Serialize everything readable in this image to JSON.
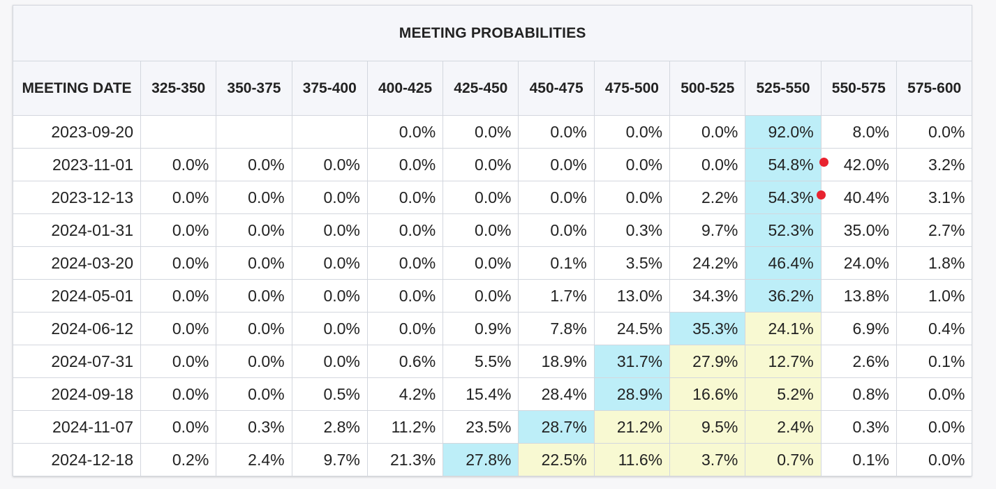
{
  "colors": {
    "current_target": "#bdeef8",
    "alternative": "#f8f9d2",
    "marker": "#e8232f"
  },
  "chart_data": {
    "type": "table",
    "title": "MEETING PROBABILITIES",
    "columns": [
      "MEETING DATE",
      "325-350",
      "350-375",
      "375-400",
      "400-425",
      "425-450",
      "450-475",
      "475-500",
      "500-525",
      "525-550",
      "550-575",
      "575-600"
    ],
    "rows": [
      {
        "date": "2023-09-20",
        "values": [
          "",
          "",
          "",
          "0.0%",
          "0.0%",
          "0.0%",
          "0.0%",
          "0.0%",
          "92.0%",
          "8.0%",
          "0.0%"
        ],
        "hi": 8,
        "alt": [],
        "dot": null
      },
      {
        "date": "2023-11-01",
        "values": [
          "0.0%",
          "0.0%",
          "0.0%",
          "0.0%",
          "0.0%",
          "0.0%",
          "0.0%",
          "0.0%",
          "54.8%",
          "42.0%",
          "3.2%"
        ],
        "hi": 8,
        "alt": [],
        "dot": 9
      },
      {
        "date": "2023-12-13",
        "values": [
          "0.0%",
          "0.0%",
          "0.0%",
          "0.0%",
          "0.0%",
          "0.0%",
          "0.0%",
          "2.2%",
          "54.3%",
          "40.4%",
          "3.1%"
        ],
        "hi": 8,
        "alt": [],
        "dot": 9
      },
      {
        "date": "2024-01-31",
        "values": [
          "0.0%",
          "0.0%",
          "0.0%",
          "0.0%",
          "0.0%",
          "0.0%",
          "0.3%",
          "9.7%",
          "52.3%",
          "35.0%",
          "2.7%"
        ],
        "hi": 8,
        "alt": [],
        "dot": null
      },
      {
        "date": "2024-03-20",
        "values": [
          "0.0%",
          "0.0%",
          "0.0%",
          "0.0%",
          "0.0%",
          "0.1%",
          "3.5%",
          "24.2%",
          "46.4%",
          "24.0%",
          "1.8%"
        ],
        "hi": 8,
        "alt": [],
        "dot": null
      },
      {
        "date": "2024-05-01",
        "values": [
          "0.0%",
          "0.0%",
          "0.0%",
          "0.0%",
          "0.0%",
          "1.7%",
          "13.0%",
          "34.3%",
          "36.2%",
          "13.8%",
          "1.0%"
        ],
        "hi": 8,
        "alt": [],
        "dot": null
      },
      {
        "date": "2024-06-12",
        "values": [
          "0.0%",
          "0.0%",
          "0.0%",
          "0.0%",
          "0.9%",
          "7.8%",
          "24.5%",
          "35.3%",
          "24.1%",
          "6.9%",
          "0.4%"
        ],
        "hi": 7,
        "alt": [
          8
        ],
        "dot": null
      },
      {
        "date": "2024-07-31",
        "values": [
          "0.0%",
          "0.0%",
          "0.0%",
          "0.6%",
          "5.5%",
          "18.9%",
          "31.7%",
          "27.9%",
          "12.7%",
          "2.6%",
          "0.1%"
        ],
        "hi": 6,
        "alt": [
          7,
          8
        ],
        "dot": null
      },
      {
        "date": "2024-09-18",
        "values": [
          "0.0%",
          "0.0%",
          "0.5%",
          "4.2%",
          "15.4%",
          "28.4%",
          "28.9%",
          "16.6%",
          "5.2%",
          "0.8%",
          "0.0%"
        ],
        "hi": 6,
        "alt": [
          7,
          8
        ],
        "dot": null
      },
      {
        "date": "2024-11-07",
        "values": [
          "0.0%",
          "0.3%",
          "2.8%",
          "11.2%",
          "23.5%",
          "28.7%",
          "21.2%",
          "9.5%",
          "2.4%",
          "0.3%",
          "0.0%"
        ],
        "hi": 5,
        "alt": [
          6,
          7,
          8
        ],
        "dot": null
      },
      {
        "date": "2024-12-18",
        "values": [
          "0.2%",
          "2.4%",
          "9.7%",
          "21.3%",
          "27.8%",
          "22.5%",
          "11.6%",
          "3.7%",
          "0.7%",
          "0.1%",
          "0.0%"
        ],
        "hi": 4,
        "alt": [
          5,
          6,
          7,
          8
        ],
        "dot": null
      }
    ]
  }
}
